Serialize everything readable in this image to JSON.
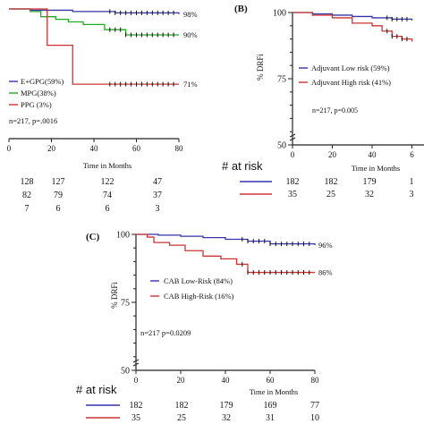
{
  "chart_data": [
    {
      "panel": "A",
      "type": "line",
      "xlabel": "Time in Months",
      "ylabel": "",
      "xlim": [
        0,
        80
      ],
      "ylim": [
        50,
        100
      ],
      "x_ticks": [
        "0",
        "20",
        "40",
        "60",
        "80"
      ],
      "series": [
        {
          "name": "E+GPG(59%)",
          "color": "#3333aa",
          "end_label": "98%",
          "x": [
            0,
            10,
            30,
            50,
            80
          ],
          "y": [
            100,
            99.5,
            99,
            98.5,
            98
          ]
        },
        {
          "name": "MPG(38%)",
          "color": "#22aa22",
          "end_label": "90%",
          "x": [
            0,
            10,
            15,
            22,
            28,
            35,
            45,
            55,
            80
          ],
          "y": [
            100,
            99,
            97,
            96,
            95,
            94,
            92,
            90,
            90
          ]
        },
        {
          "name": "PPG (3%)",
          "color": "#cc3333",
          "end_label": "71%",
          "x": [
            0,
            18,
            18,
            30,
            30,
            80
          ],
          "y": [
            100,
            100,
            86,
            86,
            71,
            71
          ]
        }
      ],
      "annotation": "n=217, p=.0016",
      "risk_table": {
        "title": "",
        "rows": [
          {
            "values": [
              "128",
              "127",
              "122",
              "47"
            ]
          },
          {
            "values": [
              "82",
              "79",
              "74",
              "37"
            ]
          },
          {
            "values": [
              "7",
              "6",
              "6",
              "3"
            ]
          }
        ]
      }
    },
    {
      "panel": "B",
      "type": "line",
      "xlabel": "Time in Months",
      "ylabel": "% DRFi",
      "xlim": [
        0,
        80
      ],
      "ylim": [
        50,
        100
      ],
      "y_ticks": [
        "100",
        "75",
        "50"
      ],
      "x_ticks": [
        "0",
        "20",
        "40",
        "6"
      ],
      "series": [
        {
          "name": "Adjuvant Low risk (59%)",
          "color": "#3333aa",
          "x": [
            0,
            10,
            20,
            30,
            40,
            50,
            60
          ],
          "y": [
            100,
            99.5,
            99,
            98.5,
            98,
            97.5,
            97
          ]
        },
        {
          "name": "Adjuvant High risk (41%)",
          "color": "#cc3333",
          "x": [
            0,
            10,
            20,
            30,
            40,
            45,
            50,
            55,
            60
          ],
          "y": [
            100,
            99,
            98,
            96,
            95,
            93,
            91,
            90,
            89
          ]
        }
      ],
      "annotation": "n=217, p=0.005",
      "risk_table": {
        "title": "# at risk",
        "rows": [
          {
            "color": "#3333aa",
            "values": [
              "182",
              "182",
              "179",
              "1"
            ]
          },
          {
            "color": "#cc3333",
            "values": [
              "35",
              "25",
              "32",
              "3"
            ]
          }
        ]
      }
    },
    {
      "panel": "C",
      "type": "line",
      "xlabel": "Time in Months",
      "ylabel": "% DRFi",
      "xlim": [
        0,
        80
      ],
      "ylim": [
        50,
        100
      ],
      "y_ticks": [
        "100",
        "75",
        "50"
      ],
      "x_ticks": [
        "0",
        "20",
        "40",
        "60",
        "80"
      ],
      "series": [
        {
          "name": "CAB Low-Risk (84%)",
          "color": "#3333aa",
          "end_label": "96%",
          "x": [
            0,
            10,
            20,
            30,
            40,
            50,
            60,
            80
          ],
          "y": [
            100,
            99.7,
            99.3,
            98.8,
            98.2,
            97.5,
            96.5,
            96
          ]
        },
        {
          "name": "CAB High-Risk (16%)",
          "color": "#cc3333",
          "end_label": "86%",
          "x": [
            0,
            5,
            8,
            15,
            22,
            30,
            38,
            45,
            50,
            80
          ],
          "y": [
            100,
            99,
            97,
            96,
            94,
            92,
            91,
            89,
            86,
            86
          ]
        }
      ],
      "annotation": "n=217 p=0.0209",
      "risk_table": {
        "title": "# at risk",
        "rows": [
          {
            "color": "#3333aa",
            "values": [
              "182",
              "182",
              "179",
              "169",
              "77"
            ]
          },
          {
            "color": "#cc3333",
            "values": [
              "35",
              "25",
              "32",
              "31",
              "10"
            ]
          }
        ]
      }
    }
  ],
  "panel_labels": {
    "b": "(B)",
    "c": "(C)"
  },
  "risk_title_color": "#d9261c"
}
